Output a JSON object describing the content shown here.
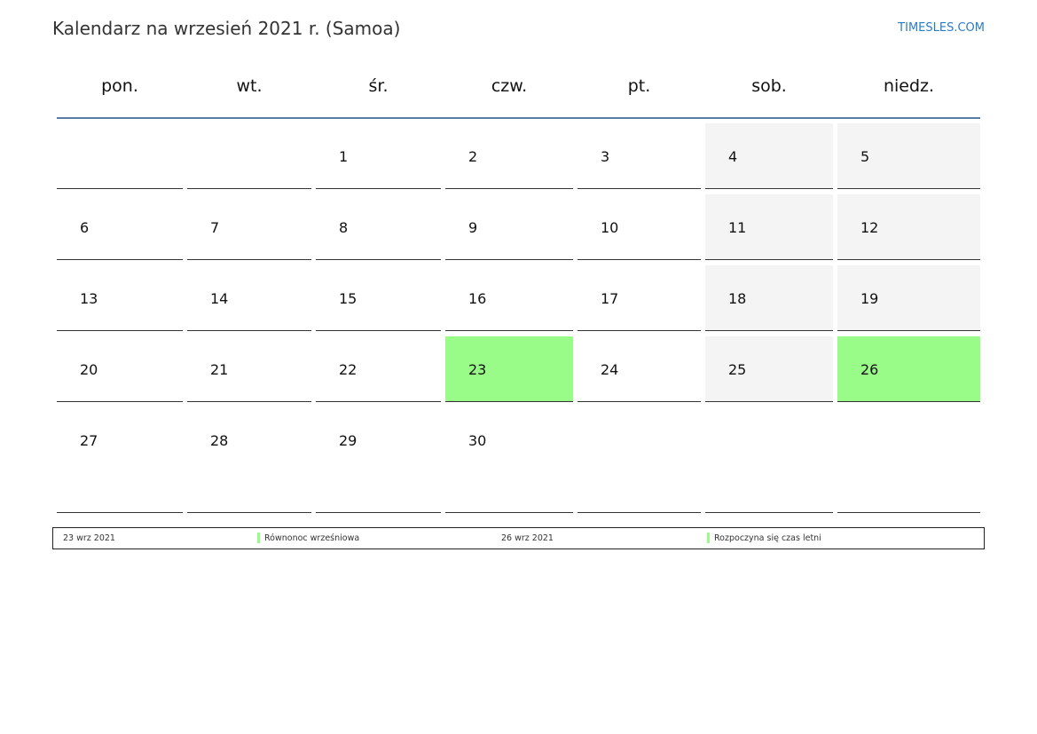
{
  "title": "Kalendarz na wrzesień 2021 r. (Samoa)",
  "brand": "TIMESLES.COM",
  "weekdays": [
    "pon.",
    "wt.",
    "śr.",
    "czw.",
    "pt.",
    "sob.",
    "niedz."
  ],
  "weeks": [
    [
      "",
      "",
      "1",
      "2",
      "3",
      "4",
      "5"
    ],
    [
      "6",
      "7",
      "8",
      "9",
      "10",
      "11",
      "12"
    ],
    [
      "13",
      "14",
      "15",
      "16",
      "17",
      "18",
      "19"
    ],
    [
      "20",
      "21",
      "22",
      "23",
      "24",
      "25",
      "26"
    ],
    [
      "27",
      "28",
      "29",
      "30",
      "",
      "",
      ""
    ]
  ],
  "highlighted_days": [
    "23",
    "26"
  ],
  "colors": {
    "highlight": "#9afc88",
    "weekend": "#f4f4f4",
    "header_rule": "#5a7aa5",
    "brand": "#2a7bc4"
  },
  "legend": [
    {
      "date": "23 wrz 2021",
      "event": "Równonoc wrześniowa"
    },
    {
      "date": "26 wrz 2021",
      "event": "Rozpoczyna się czas letni"
    }
  ]
}
